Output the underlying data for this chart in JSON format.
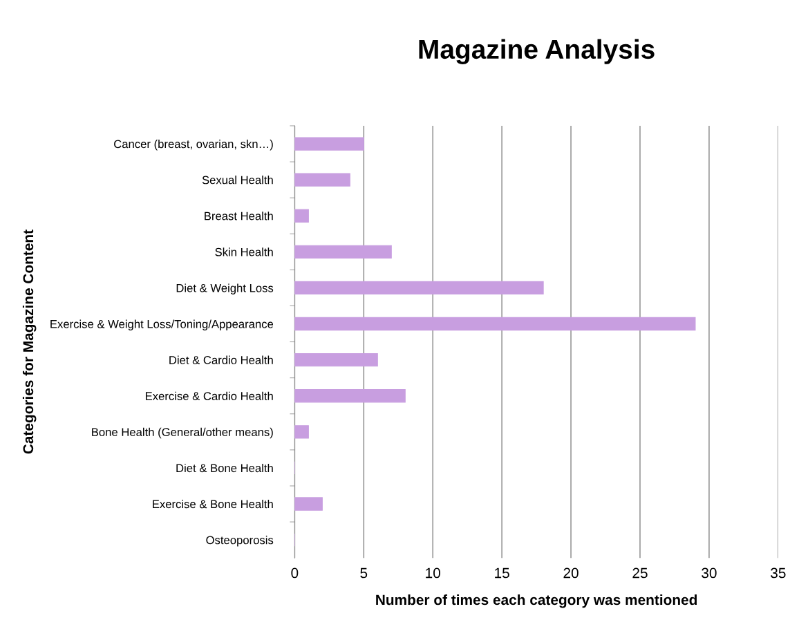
{
  "chart_data": {
    "type": "bar",
    "orientation": "horizontal",
    "title": "Magazine Analysis",
    "xlabel": "Number of times each category was mentioned",
    "ylabel": "Categories for Magazine Content",
    "categories": [
      "Cancer (breast, ovarian, skn…)",
      "Sexual Health",
      "Breast Health",
      "Skin Health",
      "Diet & Weight Loss",
      "Exercise & Weight Loss/Toning/Appearance",
      "Diet & Cardio Health",
      "Exercise & Cardio Health",
      "Bone Health (General/other means)",
      "Diet & Bone Health",
      "Exercise & Bone Health",
      "Osteoporosis"
    ],
    "values": [
      5,
      4,
      1,
      7,
      18,
      29,
      6,
      8,
      1,
      0,
      2,
      0
    ],
    "color": "#c89ee0",
    "xlim": [
      0,
      35
    ],
    "xticks": [
      0,
      5,
      10,
      15,
      20,
      25,
      30,
      35
    ],
    "grid": "x",
    "legend": false
  }
}
